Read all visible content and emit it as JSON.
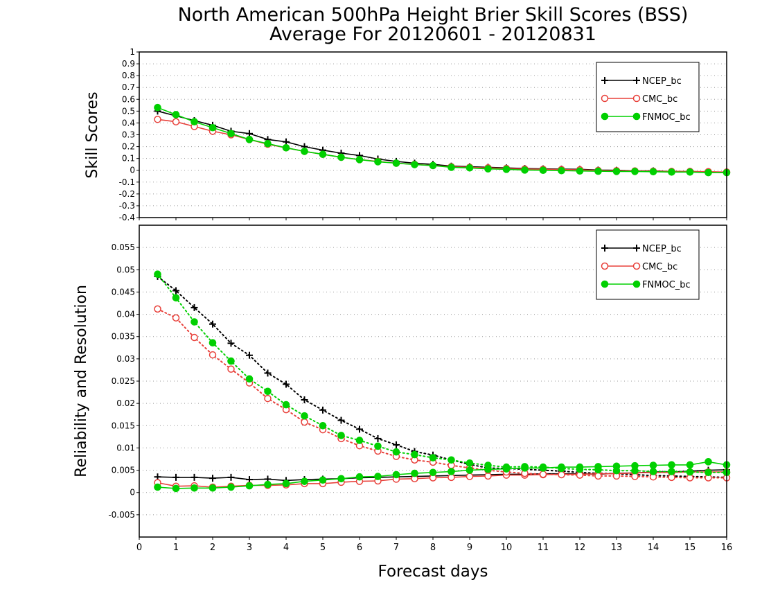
{
  "title": "North American 500hPa Height Brier Skill Scores (BSS)",
  "subtitle": "Average For 20120601 - 20120831",
  "xlabel": "Forecast days",
  "xticks": [
    "0",
    "1",
    "2",
    "3",
    "4",
    "5",
    "6",
    "7",
    "8",
    "9",
    "10",
    "11",
    "12",
    "13",
    "14",
    "15",
    "16"
  ],
  "colors": {
    "NCEP_bc": "#000000",
    "CMC_bc": "#e8403a",
    "FNMOC_bc": "#00d000"
  },
  "chart_data": [
    {
      "type": "line",
      "ylabel": "Skill Scores",
      "xlim": [
        0,
        16
      ],
      "ylim": [
        -0.4,
        1
      ],
      "grid": true,
      "legend_position": "top-right",
      "yticks": [
        "-0.4",
        "-0.3",
        "-0.2",
        "-0.1",
        "0",
        "0.1",
        "0.2",
        "0.3",
        "0.4",
        "0.5",
        "0.6",
        "0.7",
        "0.8",
        "0.9",
        "1"
      ],
      "x": [
        0.5,
        1,
        1.5,
        2,
        2.5,
        3,
        3.5,
        4,
        4.5,
        5,
        5.5,
        6,
        6.5,
        7,
        7.5,
        8,
        8.5,
        9,
        9.5,
        10,
        10.5,
        11,
        11.5,
        12,
        12.5,
        13,
        13.5,
        14,
        14.5,
        15,
        15.5,
        16
      ],
      "series": [
        {
          "name": "NCEP_bc",
          "marker": "plus",
          "line": "solid",
          "values": [
            0.5,
            0.46,
            0.42,
            0.38,
            0.33,
            0.31,
            0.26,
            0.24,
            0.2,
            0.17,
            0.145,
            0.125,
            0.095,
            0.075,
            0.06,
            0.05,
            0.035,
            0.03,
            0.025,
            0.02,
            0.015,
            0.012,
            0.01,
            0.008,
            0.002,
            0.0,
            -0.005,
            -0.005,
            -0.01,
            -0.01,
            -0.015,
            -0.02
          ]
        },
        {
          "name": "CMC_bc",
          "marker": "open-circle",
          "line": "solid",
          "values": [
            0.43,
            0.41,
            0.37,
            0.33,
            0.3,
            0.26,
            0.22,
            0.19,
            0.16,
            0.135,
            0.11,
            0.09,
            0.075,
            0.06,
            0.05,
            0.04,
            0.03,
            0.025,
            0.02,
            0.015,
            0.01,
            0.008,
            0.006,
            0.004,
            -0.002,
            -0.004,
            -0.006,
            -0.008,
            -0.01,
            -0.01,
            -0.012,
            -0.015
          ]
        },
        {
          "name": "FNMOC_bc",
          "marker": "filled-circle",
          "line": "solid",
          "values": [
            0.53,
            0.47,
            0.41,
            0.36,
            0.31,
            0.26,
            0.225,
            0.19,
            0.16,
            0.135,
            0.11,
            0.09,
            0.072,
            0.06,
            0.048,
            0.04,
            0.025,
            0.02,
            0.012,
            0.008,
            0.002,
            0.0,
            -0.003,
            -0.006,
            -0.008,
            -0.01,
            -0.01,
            -0.012,
            -0.015,
            -0.015,
            -0.02,
            -0.02
          ]
        }
      ]
    },
    {
      "type": "line",
      "ylabel": "Reliability and Resolution",
      "xlim": [
        0,
        16
      ],
      "ylim": [
        -0.01,
        0.06
      ],
      "grid": true,
      "legend_position": "top-right",
      "yticks": [
        "-0.005",
        "0",
        "0.005",
        "0.01",
        "0.015",
        "0.02",
        "0.025",
        "0.03",
        "0.035",
        "0.04",
        "0.045",
        "0.05",
        "0.055"
      ],
      "x": [
        0.5,
        1,
        1.5,
        2,
        2.5,
        3,
        3.5,
        4,
        4.5,
        5,
        5.5,
        6,
        6.5,
        7,
        7.5,
        8,
        8.5,
        9,
        9.5,
        10,
        10.5,
        11,
        11.5,
        12,
        12.5,
        13,
        13.5,
        14,
        14.5,
        15,
        15.5,
        16
      ],
      "series": [
        {
          "name": "NCEP_bc",
          "metric": "reliability",
          "marker": "plus",
          "line": "solid",
          "values": [
            0.0035,
            0.0034,
            0.0034,
            0.0032,
            0.0034,
            0.0029,
            0.003,
            0.0027,
            0.0029,
            0.003,
            0.0031,
            0.0033,
            0.0034,
            0.0035,
            0.0036,
            0.0037,
            0.0038,
            0.0039,
            0.004,
            0.0041,
            0.0041,
            0.0042,
            0.0042,
            0.0042,
            0.0041,
            0.0043,
            0.0044,
            0.0046,
            0.0046,
            0.0048,
            0.005,
            0.0051
          ]
        },
        {
          "name": "NCEP_bc",
          "metric": "resolution",
          "marker": "plus",
          "line": "dotted",
          "values": [
            0.0485,
            0.0453,
            0.0415,
            0.0378,
            0.0335,
            0.0308,
            0.0268,
            0.0243,
            0.0208,
            0.0185,
            0.0162,
            0.0142,
            0.0121,
            0.0107,
            0.0092,
            0.0084,
            0.0073,
            0.0063,
            0.0055,
            0.0054,
            0.0052,
            0.005,
            0.0048,
            0.0045,
            0.0043,
            0.0042,
            0.004,
            0.0038,
            0.0037,
            0.0036,
            0.0035,
            0.0034
          ]
        },
        {
          "name": "CMC_bc",
          "metric": "reliability",
          "marker": "open-circle",
          "line": "solid",
          "values": [
            0.0022,
            0.0014,
            0.0015,
            0.0012,
            0.0014,
            0.0016,
            0.0016,
            0.0017,
            0.002,
            0.002,
            0.0023,
            0.0025,
            0.0026,
            0.003,
            0.0031,
            0.0033,
            0.0034,
            0.0036,
            0.0037,
            0.0039,
            0.0039,
            0.004,
            0.0041,
            0.0041,
            0.0042,
            0.0042,
            0.0044,
            0.0045,
            0.0045,
            0.0046,
            0.0046,
            0.0046
          ]
        },
        {
          "name": "CMC_bc",
          "metric": "resolution",
          "marker": "open-circle",
          "line": "dotted",
          "values": [
            0.0412,
            0.0392,
            0.0348,
            0.0309,
            0.0277,
            0.0246,
            0.0211,
            0.0186,
            0.0158,
            0.0141,
            0.0121,
            0.0105,
            0.0093,
            0.0081,
            0.0073,
            0.0068,
            0.0061,
            0.0055,
            0.005,
            0.0046,
            0.0043,
            0.0041,
            0.004,
            0.0039,
            0.0037,
            0.0037,
            0.0036,
            0.0035,
            0.0034,
            0.0033,
            0.0033,
            0.0033
          ]
        },
        {
          "name": "FNMOC_bc",
          "metric": "reliability",
          "marker": "filled-circle",
          "line": "solid",
          "values": [
            0.0012,
            0.0009,
            0.001,
            0.001,
            0.0012,
            0.0015,
            0.0018,
            0.002,
            0.0025,
            0.0028,
            0.0031,
            0.0035,
            0.0036,
            0.004,
            0.0043,
            0.0045,
            0.0047,
            0.005,
            0.0052,
            0.0053,
            0.0055,
            0.0055,
            0.0057,
            0.0057,
            0.0058,
            0.0059,
            0.006,
            0.0061,
            0.0062,
            0.0062,
            0.0069,
            0.0062
          ]
        },
        {
          "name": "FNMOC_bc",
          "metric": "resolution",
          "marker": "filled-circle",
          "line": "dotted",
          "values": [
            0.049,
            0.0437,
            0.0383,
            0.0336,
            0.0295,
            0.0255,
            0.0227,
            0.0197,
            0.0172,
            0.015,
            0.0128,
            0.0117,
            0.0104,
            0.0091,
            0.0085,
            0.0078,
            0.0073,
            0.0066,
            0.0061,
            0.0057,
            0.0058,
            0.0057,
            0.0054,
            0.0052,
            0.0051,
            0.0049,
            0.0049,
            0.0047,
            0.0047,
            0.0046,
            0.0045,
            0.0045
          ]
        }
      ]
    }
  ]
}
